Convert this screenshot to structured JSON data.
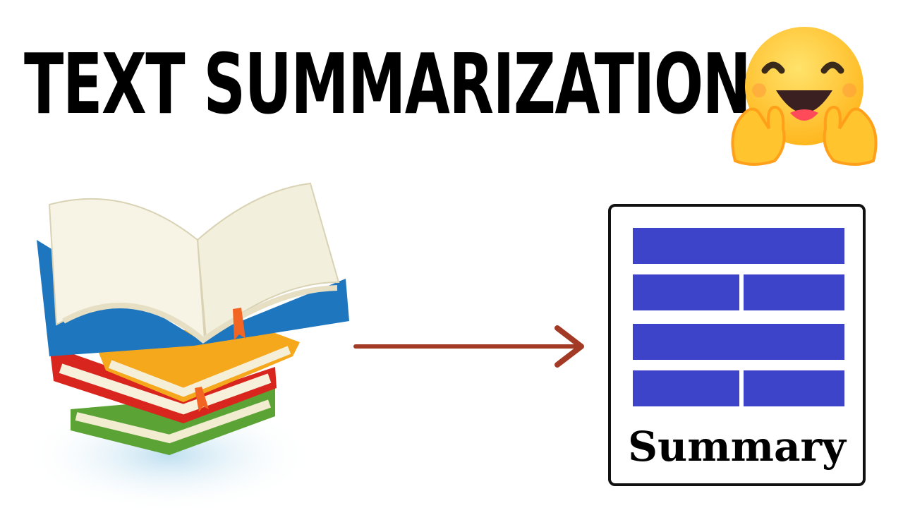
{
  "title": "TEXT SUMMARIZATION",
  "summary_label": "Summary",
  "colors": {
    "bar": "#3d44c9",
    "arrow": "#a23a26",
    "title": "#000000",
    "emoji_face": "#ffc42e"
  },
  "icons": {
    "emoji": "hugging-face-emoji",
    "books": "book-stack-illustration",
    "arrow": "right-arrow",
    "document": "summary-document-icon"
  }
}
